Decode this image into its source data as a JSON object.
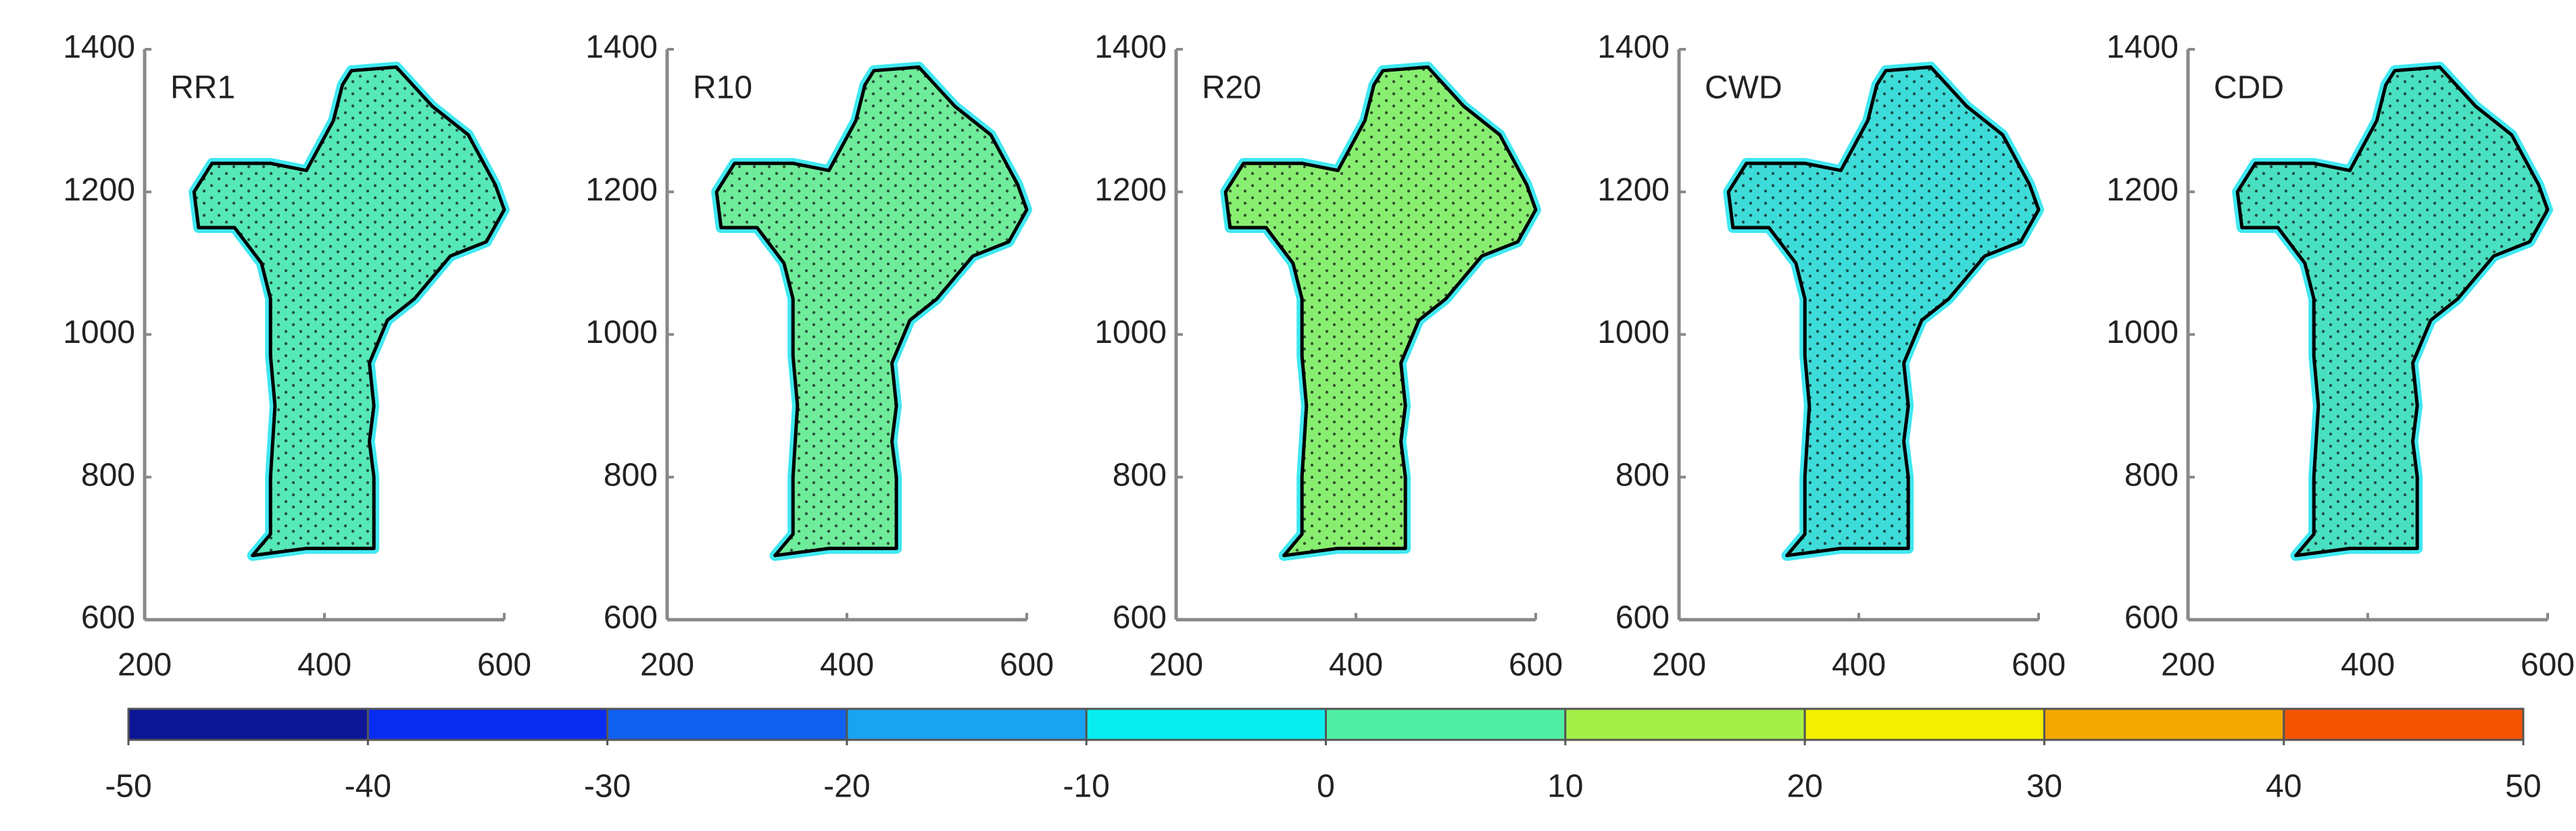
{
  "chart_data": [
    {
      "type": "map",
      "title": "RR1",
      "xlim": [
        200,
        600
      ],
      "xticks": [
        200,
        400,
        600
      ],
      "ylim": [
        600,
        1400
      ],
      "yticks": [
        600,
        800,
        1000,
        1200,
        1400
      ],
      "fill": "#55e8b8"
    },
    {
      "type": "map",
      "title": "R10",
      "xlim": [
        200,
        600
      ],
      "xticks": [
        200,
        400,
        600
      ],
      "ylim": [
        600,
        1400
      ],
      "yticks": [
        600,
        800,
        1000,
        1200,
        1400
      ],
      "fill": "#6eec9a"
    },
    {
      "type": "map",
      "title": "R20",
      "xlim": [
        200,
        600
      ],
      "xticks": [
        200,
        400,
        600
      ],
      "ylim": [
        600,
        1400
      ],
      "yticks": [
        600,
        800,
        1000,
        1200,
        1400
      ],
      "fill": "#88ee70"
    },
    {
      "type": "map",
      "title": "CWD",
      "xlim": [
        200,
        600
      ],
      "xticks": [
        200,
        400,
        600
      ],
      "ylim": [
        600,
        1400
      ],
      "yticks": [
        600,
        800,
        1000,
        1200,
        1400
      ],
      "fill": "#3ddcd8"
    },
    {
      "type": "map",
      "title": "CDD",
      "xlim": [
        200,
        600
      ],
      "xticks": [
        200,
        400,
        600
      ],
      "ylim": [
        600,
        1400
      ],
      "yticks": [
        600,
        800,
        1000,
        1200,
        1400
      ],
      "fill": "#48e0c0"
    }
  ],
  "colorbar": {
    "lim": [
      -50,
      50
    ],
    "ticks": [
      -50,
      -40,
      -30,
      -20,
      -10,
      0,
      10,
      20,
      30,
      40,
      50
    ],
    "colors": [
      "#0c1696",
      "#0a2cf0",
      "#1060f0",
      "#18a4f0",
      "#08eef0",
      "#50eea4",
      "#a4f048",
      "#f4f000",
      "#f4a800",
      "#f45400"
    ]
  }
}
